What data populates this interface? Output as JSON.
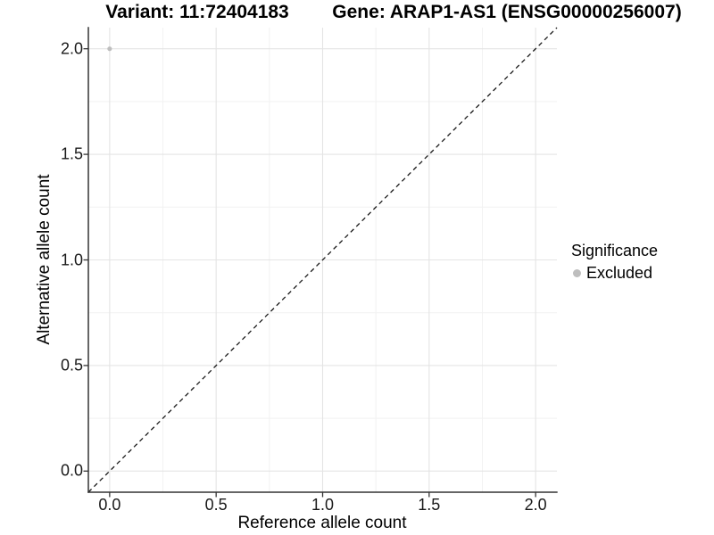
{
  "chart_data": {
    "type": "scatter",
    "titles": [
      "Variant: 11:72404183",
      "Gene: ARAP1-AS1 (ENSG00000256007)"
    ],
    "xlabel": "Reference allele count",
    "ylabel": "Alternative allele count",
    "xlim": [
      -0.1,
      2.1
    ],
    "ylim": [
      -0.1,
      2.1
    ],
    "x_ticks": {
      "values": [
        0,
        0.5,
        1,
        1.5,
        2
      ],
      "labels": [
        "0.0",
        "0.5",
        "1.0",
        "1.5",
        "2.0"
      ]
    },
    "y_ticks": {
      "values": [
        0,
        0.5,
        1,
        1.5,
        2
      ],
      "labels": [
        "0.0",
        "0.5",
        "1.0",
        "1.5",
        "2.0"
      ]
    },
    "minor_grid": [
      0.25,
      0.75,
      1.25,
      1.75
    ],
    "grid": "major+minor",
    "series": [
      {
        "name": "Excluded",
        "color": "#bebebe",
        "point_radius": 2.6,
        "points": [
          {
            "x": 0,
            "y": 2
          }
        ]
      }
    ],
    "reference_line": {
      "kind": "identity y=x",
      "from": [
        -0.1,
        -0.1
      ],
      "to": [
        2.1,
        2.1
      ],
      "style": "dashed",
      "color": "#1a1a1a"
    },
    "legend": {
      "title": "Significance",
      "position": "right",
      "entries": [
        {
          "label": "Excluded",
          "color": "#bebebe",
          "marker": "circle"
        }
      ]
    }
  },
  "colors": {
    "background": "#ffffff",
    "axis_line": "#333333",
    "tick_mark": "#333333",
    "grid_major": "#e4e4e4",
    "grid_minor": "#f2f2f2",
    "point": "#bebebe"
  }
}
